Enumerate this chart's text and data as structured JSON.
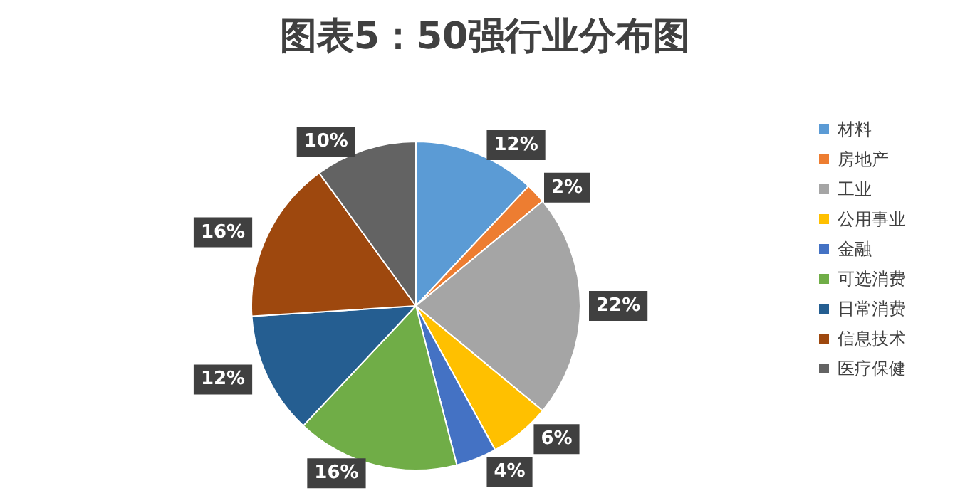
{
  "chart_data": {
    "type": "pie",
    "title": "图表5：50强行业分布图",
    "categories": [
      "材料",
      "房地产",
      "工业",
      "公用事业",
      "金融",
      "可选消费",
      "日常消费",
      "信息技术",
      "医疗保健"
    ],
    "values": [
      12,
      2,
      22,
      6,
      4,
      16,
      12,
      16,
      10
    ],
    "value_labels": [
      "12%",
      "2%",
      "22%",
      "6%",
      "4%",
      "16%",
      "12%",
      "16%",
      "10%"
    ],
    "colors": [
      "#5b9bd5",
      "#ed7d31",
      "#a5a5a5",
      "#ffc000",
      "#4472c4",
      "#70ad47",
      "#255e91",
      "#9e480e",
      "#636363"
    ],
    "legend": "right"
  }
}
